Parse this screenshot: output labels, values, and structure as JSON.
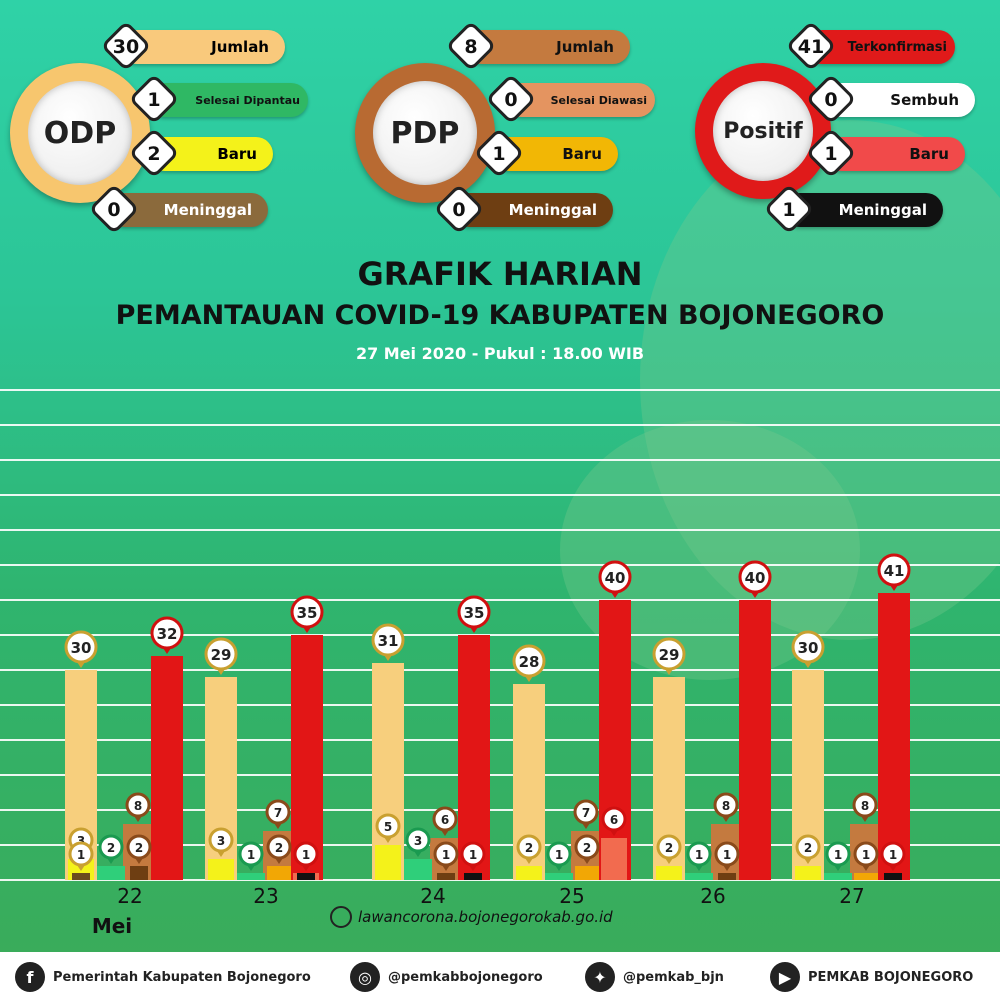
{
  "summaries": {
    "odp": {
      "name": "ODP",
      "items": [
        {
          "value": "30",
          "label": "Jumlah",
          "color": "#f9c97c"
        },
        {
          "value": "1",
          "label": "Selesai Dipantau",
          "color": "#2fb864"
        },
        {
          "value": "2",
          "label": "Baru",
          "color": "#f4f21a"
        },
        {
          "value": "0",
          "label": "Meninggal",
          "color": "#8b6a3c"
        }
      ],
      "ring_color": "#f7c66e"
    },
    "pdp": {
      "name": "PDP",
      "items": [
        {
          "value": "8",
          "label": "Jumlah",
          "color": "#c47a3f"
        },
        {
          "value": "0",
          "label": "Selesai Diawasi",
          "color": "#e49460"
        },
        {
          "value": "1",
          "label": "Baru",
          "color": "#f2b705"
        },
        {
          "value": "0",
          "label": "Meninggal",
          "color": "#6e3e12"
        }
      ],
      "ring_color": "#b86a32"
    },
    "positif": {
      "name": "Positif",
      "items": [
        {
          "value": "41",
          "label": "Terkonfirmasi",
          "color": "#e01a1a"
        },
        {
          "value": "0",
          "label": "Sembuh",
          "color": "#ffffff"
        },
        {
          "value": "1",
          "label": "Baru",
          "color": "#f14a4a"
        },
        {
          "value": "1",
          "label": "Meninggal",
          "color": "#111111"
        }
      ],
      "ring_color": "#e01a1a"
    }
  },
  "titles": {
    "line1": "GRAFIK HARIAN",
    "line2": "PEMANTAUAN COVID-19 KABUPATEN BOJONEGORO",
    "line3": "27 Mei 2020 - Pukul : 18.00 WIB"
  },
  "chart_data": {
    "type": "bar",
    "categories": [
      "22",
      "23",
      "24",
      "25",
      "26",
      "27"
    ],
    "category_sublabel": "Mei",
    "series": [
      {
        "key": "odp_jumlah",
        "color": "#f7cf7d",
        "values": [
          30,
          29,
          31,
          28,
          29,
          30
        ]
      },
      {
        "key": "odp_baru",
        "color": "#f4f21a",
        "values": [
          3,
          3,
          5,
          2,
          2,
          2
        ]
      },
      {
        "key": "odp_meninggal",
        "color": "#6b4a1e",
        "values": [
          1,
          null,
          null,
          null,
          null,
          null
        ]
      },
      {
        "key": "odp_selesai",
        "color": "#2fcf7a",
        "values": [
          2,
          1,
          3,
          1,
          1,
          1
        ]
      },
      {
        "key": "pdp_jumlah",
        "color": "#c47a3f",
        "values": [
          8,
          7,
          6,
          7,
          8,
          8
        ]
      },
      {
        "key": "pdp_baru",
        "color": "#f2a705",
        "values": [
          null,
          2,
          null,
          2,
          null,
          1
        ]
      },
      {
        "key": "pdp_other",
        "color": "#6e3e12",
        "values": [
          2,
          null,
          1,
          null,
          1,
          null
        ]
      },
      {
        "key": "positif_baru",
        "color": "#f26b4f",
        "values": [
          null,
          1,
          null,
          6,
          null,
          null
        ]
      },
      {
        "key": "positif_meninggal",
        "color": "#111111",
        "values": [
          null,
          1,
          1,
          null,
          null,
          1
        ]
      },
      {
        "key": "positif_terkonfirmasi",
        "color": "#e21616",
        "values": [
          32,
          35,
          35,
          40,
          40,
          41
        ]
      }
    ],
    "ylim": [
      0,
      70
    ],
    "grid": true
  },
  "url": "lawancorona.bojonegorokab.go.id",
  "footer": {
    "facebook": "Pemerintah Kabupaten Bojonegoro",
    "instagram": "@pemkabbojonegoro",
    "twitter": "@pemkab_bjn",
    "youtube": "PEMKAB BOJONEGORO"
  }
}
